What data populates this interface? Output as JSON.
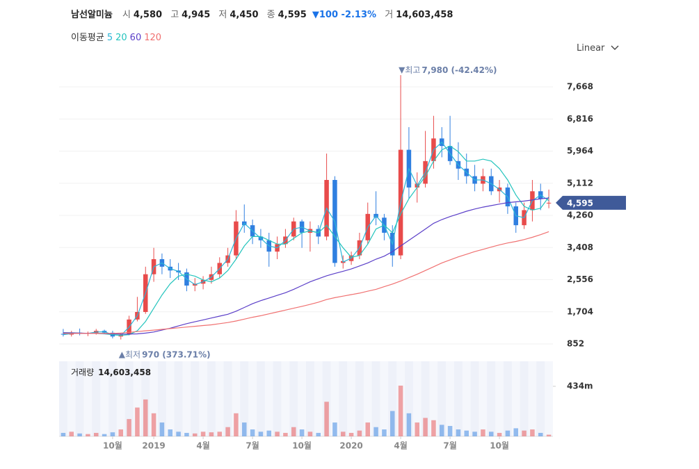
{
  "header": {
    "name": "남선알미늄",
    "items": [
      {
        "label": "시",
        "value": "4,580"
      },
      {
        "label": "고",
        "value": "4,945"
      },
      {
        "label": "저",
        "value": "4,450"
      },
      {
        "label": "종",
        "value": "4,595"
      }
    ],
    "change": "100 -2.13%",
    "volume_label": "거",
    "volume": "14,603,458"
  },
  "scale_menu": "Linear",
  "chart_data": {
    "type": "candlestick",
    "ma_title": "이동평균",
    "categories": [
      null,
      null,
      null,
      null,
      null,
      null,
      "10월",
      null,
      null,
      null,
      null,
      "2019",
      null,
      null,
      null,
      null,
      null,
      "4월",
      null,
      null,
      null,
      null,
      null,
      "7월",
      null,
      null,
      null,
      null,
      null,
      "10월",
      null,
      null,
      null,
      null,
      null,
      "2020",
      null,
      null,
      null,
      null,
      null,
      "4월",
      null,
      null,
      null,
      null,
      null,
      "7월",
      null,
      null,
      null,
      null,
      null,
      "10월",
      null,
      null,
      null,
      null,
      null,
      null
    ],
    "open": [
      1120,
      1100,
      1150,
      1120,
      1140,
      1200,
      1150,
      1050,
      1100,
      1500,
      1700,
      2700,
      3100,
      2900,
      2800,
      2750,
      2400,
      2450,
      2550,
      2700,
      3000,
      3200,
      4100,
      4000,
      3700,
      3600,
      3300,
      3500,
      3700,
      4100,
      3800,
      3900,
      3700,
      5200,
      3000,
      3050,
      3200,
      3600,
      4300,
      4200,
      3800,
      3200,
      6000,
      5000,
      5100,
      5700,
      6300,
      6100,
      5700,
      5500,
      5300,
      5100,
      5300,
      4900,
      5000,
      4500,
      4000,
      4400,
      4900,
      4580
    ],
    "high": [
      1250,
      1200,
      1260,
      1180,
      1250,
      1230,
      1200,
      1150,
      1600,
      2100,
      2900,
      3400,
      3250,
      3100,
      3000,
      2850,
      2600,
      2650,
      2900,
      3150,
      3400,
      4400,
      4550,
      4150,
      3900,
      3800,
      3700,
      3900,
      4200,
      4150,
      4100,
      4000,
      5900,
      5300,
      3200,
      3300,
      3800,
      4600,
      4900,
      4300,
      4000,
      7980,
      6600,
      5400,
      6500,
      6900,
      6600,
      6900,
      6200,
      5900,
      5600,
      5500,
      5500,
      5200,
      5100,
      4600,
      4600,
      5200,
      5100,
      4945
    ],
    "low": [
      1050,
      1050,
      1080,
      1060,
      1100,
      1120,
      1000,
      970,
      1080,
      1450,
      1650,
      2500,
      2700,
      2600,
      2550,
      2250,
      2250,
      2300,
      2450,
      2600,
      2900,
      3100,
      3800,
      3500,
      3400,
      2900,
      3100,
      3400,
      3600,
      3400,
      3300,
      3500,
      3600,
      2900,
      2850,
      2950,
      3100,
      3500,
      4000,
      3600,
      2900,
      3100,
      4700,
      4600,
      5000,
      5500,
      5800,
      5600,
      5200,
      5100,
      4900,
      4900,
      4800,
      4600,
      4300,
      3800,
      3900,
      4100,
      4400,
      4450
    ],
    "close": [
      1100,
      1150,
      1120,
      1140,
      1200,
      1150,
      1050,
      1100,
      1500,
      1700,
      2700,
      3100,
      2900,
      2800,
      2750,
      2400,
      2450,
      2550,
      2700,
      3000,
      3200,
      4100,
      4000,
      3700,
      3600,
      3300,
      3500,
      3700,
      4100,
      3800,
      3900,
      3700,
      5200,
      3000,
      3050,
      3200,
      3600,
      4300,
      4200,
      3800,
      3200,
      6000,
      5000,
      5100,
      5700,
      6300,
      6100,
      5700,
      5500,
      5300,
      5100,
      5300,
      4900,
      5000,
      4500,
      4000,
      4400,
      4900,
      4700,
      4595
    ],
    "volume": [
      30000000,
      40000000,
      25000000,
      20000000,
      30000000,
      20000000,
      35000000,
      60000000,
      150000000,
      250000000,
      320000000,
      200000000,
      120000000,
      60000000,
      40000000,
      30000000,
      25000000,
      40000000,
      35000000,
      40000000,
      80000000,
      200000000,
      120000000,
      60000000,
      40000000,
      50000000,
      40000000,
      30000000,
      80000000,
      60000000,
      40000000,
      30000000,
      300000000,
      120000000,
      40000000,
      30000000,
      50000000,
      120000000,
      80000000,
      60000000,
      220000000,
      440000000,
      200000000,
      120000000,
      160000000,
      140000000,
      100000000,
      90000000,
      60000000,
      50000000,
      40000000,
      60000000,
      40000000,
      30000000,
      50000000,
      70000000,
      50000000,
      60000000,
      30000000,
      14603458
    ],
    "up_color": "#e84b4b",
    "down_color": "#2f7fe0",
    "ma_series": [
      {
        "name": "5",
        "color": "#2bb5d8",
        "values": [
          1100,
          1125,
          1135,
          1130,
          1170,
          1175,
          1100,
          1075,
          1300,
          1600,
          2200,
          2900,
          3000,
          2850,
          2775,
          2575,
          2425,
          2500,
          2625,
          2850,
          3100,
          3650,
          4050,
          3850,
          3650,
          3450,
          3400,
          3600,
          3900,
          3950,
          3850,
          3800,
          4450,
          4100,
          3025,
          3125,
          3400,
          3950,
          4250,
          4000,
          3500,
          4600,
          5500,
          5050,
          5400,
          6000,
          6200,
          5900,
          5600,
          5400,
          5200,
          5200,
          5100,
          4950,
          4750,
          4250,
          4200,
          4650,
          4800,
          4650
        ]
      },
      {
        "name": "20",
        "color": "#23c4bd",
        "values": [
          1150,
          1150,
          1140,
          1130,
          1130,
          1120,
          1100,
          1080,
          1100,
          1200,
          1450,
          1800,
          2150,
          2450,
          2650,
          2700,
          2650,
          2550,
          2500,
          2600,
          2800,
          3100,
          3450,
          3700,
          3700,
          3600,
          3500,
          3500,
          3650,
          3800,
          3850,
          3800,
          4000,
          3700,
          3400,
          3150,
          3200,
          3500,
          3900,
          4000,
          3800,
          4300,
          4700,
          5000,
          5300,
          5700,
          6000,
          6100,
          5950,
          5700,
          5700,
          5750,
          5700,
          5500,
          5200,
          4800,
          4500,
          4400,
          4450,
          4750
        ]
      },
      {
        "name": "60",
        "color": "#5a3ec8",
        "values": [
          1150,
          1145,
          1140,
          1135,
          1130,
          1125,
          1120,
          1115,
          1115,
          1120,
          1140,
          1170,
          1220,
          1270,
          1330,
          1390,
          1440,
          1490,
          1540,
          1590,
          1640,
          1720,
          1820,
          1920,
          2000,
          2070,
          2140,
          2210,
          2300,
          2400,
          2500,
          2580,
          2660,
          2720,
          2780,
          2840,
          2920,
          3000,
          3100,
          3180,
          3300,
          3450,
          3600,
          3750,
          3900,
          4050,
          4150,
          4230,
          4300,
          4370,
          4430,
          4480,
          4520,
          4560,
          4600,
          4620,
          4640,
          4670,
          4700,
          4720
        ]
      },
      {
        "name": "120",
        "color": "#f07070",
        "values": [
          1130,
          1130,
          1130,
          1130,
          1130,
          1130,
          1130,
          1140,
          1160,
          1180,
          1200,
          1220,
          1240,
          1260,
          1280,
          1300,
          1320,
          1340,
          1360,
          1390,
          1420,
          1460,
          1510,
          1560,
          1600,
          1650,
          1700,
          1750,
          1800,
          1850,
          1900,
          1960,
          2030,
          2080,
          2120,
          2160,
          2200,
          2250,
          2300,
          2370,
          2440,
          2520,
          2610,
          2700,
          2800,
          2900,
          3000,
          3080,
          3160,
          3230,
          3300,
          3360,
          3420,
          3480,
          3530,
          3570,
          3620,
          3680,
          3750,
          3830
        ]
      }
    ],
    "ylim": [
      392,
      8313
    ],
    "yticks": [
      852,
      {
        "value": 1704,
        "label": "1,704"
      },
      {
        "value": 2556,
        "label": "2,556"
      },
      {
        "value": 3408,
        "label": "3,408"
      },
      {
        "value": 4260,
        "label": "4,260"
      },
      {
        "value": 5112,
        "label": "5,112"
      },
      {
        "value": 5964,
        "label": "5,964"
      },
      {
        "value": 6816,
        "label": "6,816"
      },
      {
        "value": 7668,
        "label": "7,668"
      }
    ],
    "grid": true,
    "last_price": {
      "value": 4595,
      "label": "4,595"
    },
    "high_annotation": {
      "label": "최고",
      "text": "7,980 (-42.42%)"
    },
    "low_annotation": {
      "label": "최저",
      "text": "970 (373.71%)"
    },
    "volume_title": "거래량",
    "volume_value": "14,603,458",
    "volume_ylim": [
      0,
      651000000
    ],
    "volume_yticks": [
      {
        "value": 434000000,
        "label": "434m"
      }
    ]
  }
}
